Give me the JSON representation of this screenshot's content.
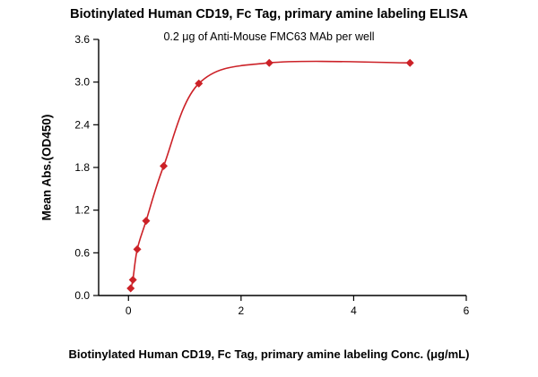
{
  "chart_data": {
    "type": "scatter",
    "title": "Biotinylated Human CD19, Fc Tag, primary amine labeling ELISA",
    "subtitle": "0.2 μg of Anti-Mouse FMC63 MAb per well",
    "xlabel": "Biotinylated Human CD19, Fc Tag, primary amine labeling Conc. (μg/mL)",
    "ylabel": "Mean Abs.(OD450)",
    "x": [
      0.039,
      0.078,
      0.156,
      0.313,
      0.625,
      1.25,
      2.5,
      5
    ],
    "y": [
      0.1,
      0.22,
      0.65,
      1.05,
      1.82,
      2.98,
      3.27,
      3.27
    ],
    "curve": "4PL sigmoidal fit through points, plateau at 3.27",
    "x_tick_labels": [
      "0",
      "2",
      "4",
      "6"
    ],
    "y_tick_labels": [
      "0.0",
      "0.6",
      "1.2",
      "1.8",
      "2.4",
      "3.0",
      "3.6"
    ],
    "xlim": [
      -0.53,
      6
    ],
    "ylim": [
      0,
      3.6
    ],
    "grid": false,
    "legend": "none",
    "marker": "diamond",
    "line_color": "#cc2127",
    "marker_color": "#cc2127",
    "axis_color": "#000000"
  }
}
